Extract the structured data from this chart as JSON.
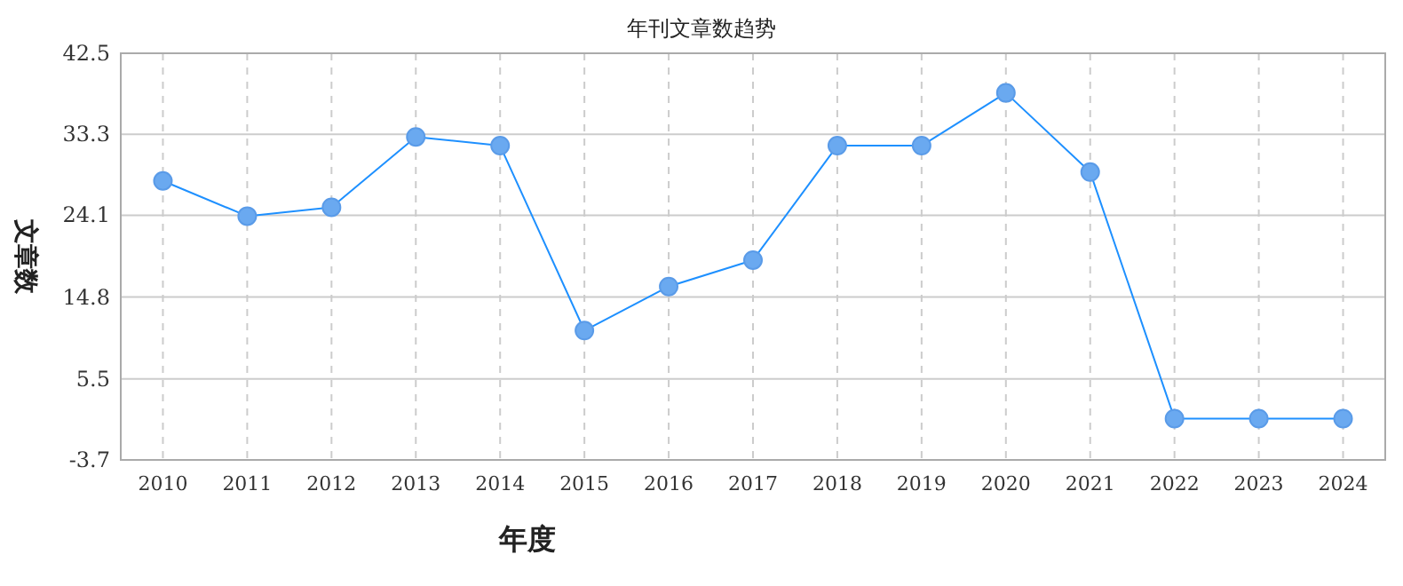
{
  "chart_data": {
    "type": "line",
    "title": "年刊文章数趋势",
    "xlabel": "年度",
    "ylabel": "文章数",
    "categories": [
      "2010",
      "2011",
      "2012",
      "2013",
      "2014",
      "2015",
      "2016",
      "2017",
      "2018",
      "2019",
      "2020",
      "2021",
      "2022",
      "2023",
      "2024"
    ],
    "series": [
      {
        "color": "#1e90ff",
        "values": [
          28,
          24,
          25,
          33,
          32,
          11,
          16,
          19,
          32,
          32,
          38,
          29,
          1,
          1,
          1
        ]
      }
    ],
    "ylim": [
      -3.7,
      42.5
    ],
    "yticks": [
      -3.7,
      5.5,
      14.8,
      24.1,
      33.3,
      42.5
    ],
    "grid": true,
    "marker": "circle",
    "line_style": "solid"
  }
}
